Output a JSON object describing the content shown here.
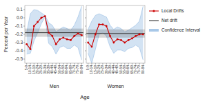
{
  "chart_data": {
    "type": "line",
    "xlabel": "Age",
    "ylabel": "Percent per Year",
    "categories": [
      "5-9",
      "10-14",
      "15-19",
      "20-24",
      "25-29",
      "30-34",
      "35-39",
      "40-44",
      "45-49",
      "50-54",
      "55-59",
      "60-64",
      "65-69",
      "70-74",
      "75-79",
      "80-84"
    ],
    "ylim": [
      -0.55,
      0.15
    ],
    "yticks": [
      -0.5,
      -0.4,
      -0.3,
      -0.2,
      -0.1,
      {
        "value": 0,
        "label": "0.0"
      },
      0.1
    ],
    "legend": "right",
    "series": [
      {
        "name": "Local Drifts",
        "color": "#cc0000",
        "marker": "circle"
      },
      {
        "name": "Net drift",
        "color": "#333333"
      },
      {
        "name": "Confidence Interval",
        "color": "#a8c8e8"
      }
    ],
    "panels": [
      {
        "title": "Men",
        "local": [
          -0.32,
          -0.38,
          -0.1,
          -0.05,
          0.0,
          0.02,
          -0.18,
          -0.22,
          -0.32,
          -0.26,
          -0.24,
          -0.26,
          -0.27,
          -0.22,
          -0.19,
          -0.21
        ],
        "ci_upper": [
          -0.18,
          0.05,
          0.1,
          0.09,
          0.06,
          0.03,
          -0.06,
          -0.09,
          -0.17,
          -0.14,
          -0.11,
          -0.13,
          -0.15,
          -0.09,
          0.01,
          0.14
        ],
        "ci_lower": [
          -0.44,
          -0.43,
          -0.28,
          -0.18,
          -0.07,
          0.01,
          -0.31,
          -0.35,
          -0.44,
          -0.36,
          -0.34,
          -0.37,
          -0.37,
          -0.33,
          -0.36,
          -0.51
        ],
        "net": -0.18,
        "net_ci_upper": -0.13,
        "net_ci_lower": -0.23
      },
      {
        "title": "Women",
        "local": [
          -0.3,
          -0.35,
          -0.2,
          -0.08,
          -0.08,
          -0.1,
          -0.22,
          -0.3,
          -0.26,
          -0.27,
          -0.3,
          -0.27,
          -0.25,
          -0.22,
          -0.2,
          -0.2
        ],
        "ci_upper": [
          -0.14,
          -0.04,
          0.03,
          0.05,
          0.03,
          0.01,
          -0.09,
          -0.14,
          -0.11,
          -0.13,
          -0.17,
          -0.15,
          -0.12,
          -0.09,
          -0.04,
          0.14
        ],
        "ci_lower": [
          -0.43,
          -0.55,
          -0.38,
          -0.2,
          -0.18,
          -0.22,
          -0.35,
          -0.43,
          -0.39,
          -0.39,
          -0.41,
          -0.37,
          -0.36,
          -0.33,
          -0.36,
          -0.51
        ],
        "net": -0.19,
        "net_ci_upper": -0.14,
        "net_ci_lower": -0.24
      }
    ]
  }
}
